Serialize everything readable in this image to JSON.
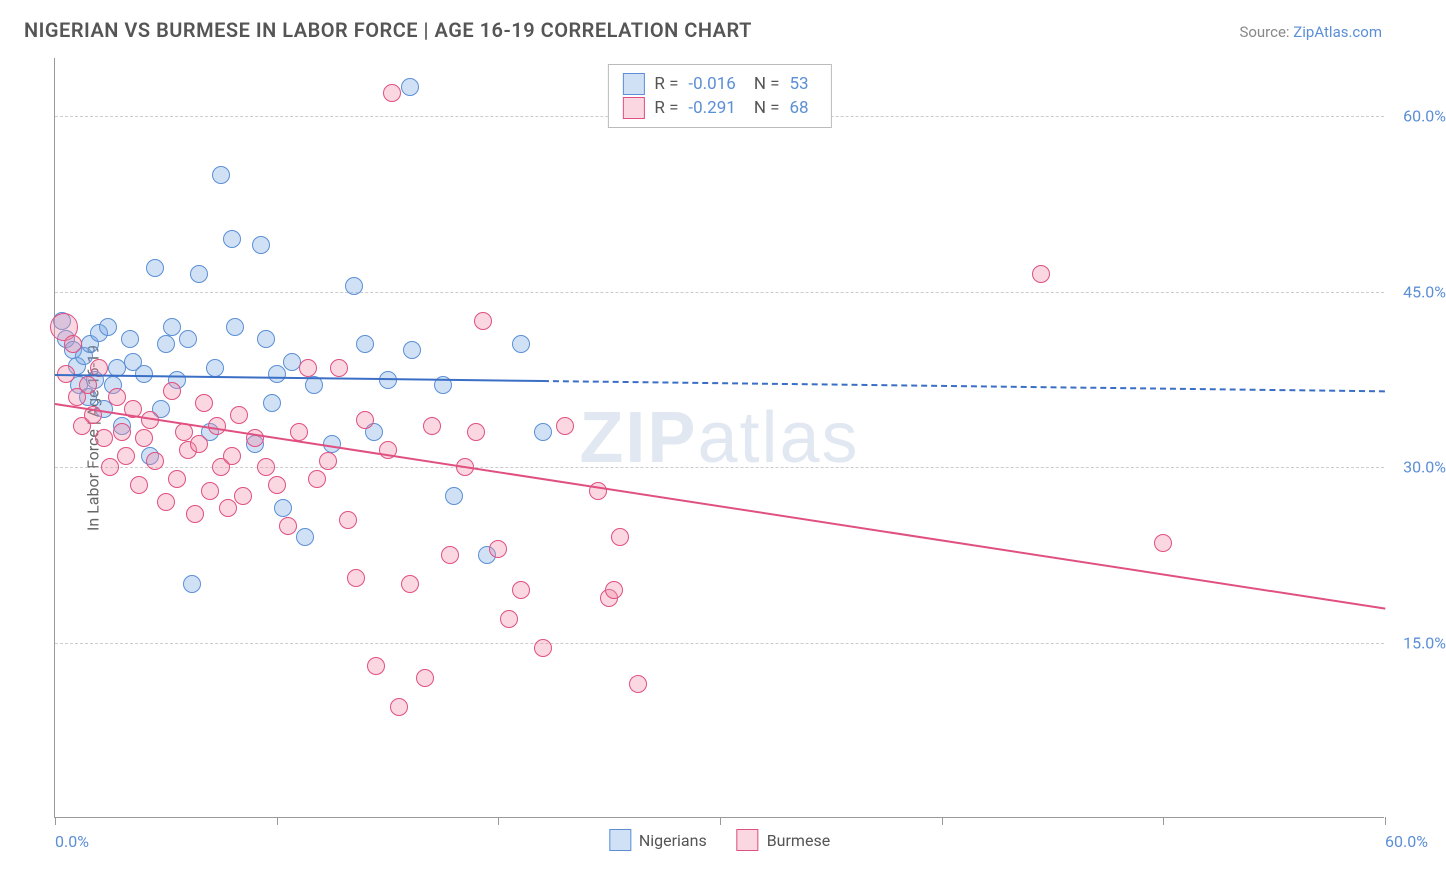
{
  "title": "NIGERIAN VS BURMESE IN LABOR FORCE | AGE 16-19 CORRELATION CHART",
  "source_prefix": "Source: ",
  "source_link": "ZipAtlas.com",
  "ylabel": "In Labor Force | Age 16-19",
  "watermark_bold": "ZIP",
  "watermark_rest": "atlas",
  "chart": {
    "type": "scatter",
    "xlim": [
      0,
      60
    ],
    "ylim": [
      0,
      65
    ],
    "x_ticks": [
      0,
      10,
      20,
      30,
      40,
      50,
      60
    ],
    "x_tick_labels": {
      "0": "0.0%",
      "60": "60.0%"
    },
    "y_gridlines": [
      15,
      30,
      45,
      60
    ],
    "y_tick_labels": {
      "15": "15.0%",
      "30": "30.0%",
      "45": "45.0%",
      "60": "60.0%"
    },
    "background_color": "#ffffff",
    "grid_color": "#cccccc",
    "axis_color": "#999999",
    "tick_label_color": "#5b8fd6",
    "marker_radius": 9,
    "marker_stroke_width": 1.5,
    "series": [
      {
        "name": "Nigerians",
        "fill": "rgba(120,170,230,0.35)",
        "stroke": "#5b8fd6",
        "R": "-0.016",
        "N": "53",
        "trend": {
          "x1": 0,
          "y1": 38.0,
          "x2": 60,
          "y2": 36.6,
          "solid_until_x": 22,
          "color": "#3b6fc6"
        },
        "points": [
          [
            0.3,
            42.5
          ],
          [
            0.5,
            41.0
          ],
          [
            0.8,
            40.0
          ],
          [
            1.0,
            38.7
          ],
          [
            1.1,
            37.0
          ],
          [
            1.3,
            39.5
          ],
          [
            1.5,
            36.0
          ],
          [
            1.6,
            40.5
          ],
          [
            1.8,
            37.5
          ],
          [
            2.0,
            41.5
          ],
          [
            2.2,
            35.0
          ],
          [
            2.4,
            42.0
          ],
          [
            2.6,
            37.0
          ],
          [
            2.8,
            38.5
          ],
          [
            3.0,
            33.5
          ],
          [
            3.4,
            41.0
          ],
          [
            3.5,
            39.0
          ],
          [
            4.0,
            38.0
          ],
          [
            4.3,
            31.0
          ],
          [
            4.5,
            47.0
          ],
          [
            4.8,
            35.0
          ],
          [
            5.0,
            40.5
          ],
          [
            5.3,
            42.0
          ],
          [
            5.5,
            37.5
          ],
          [
            6.0,
            41.0
          ],
          [
            6.2,
            20.0
          ],
          [
            6.5,
            46.5
          ],
          [
            7.0,
            33.0
          ],
          [
            7.2,
            38.5
          ],
          [
            7.5,
            55.0
          ],
          [
            8.0,
            49.5
          ],
          [
            8.1,
            42.0
          ],
          [
            9.0,
            32.0
          ],
          [
            9.3,
            49.0
          ],
          [
            9.5,
            41.0
          ],
          [
            9.8,
            35.5
          ],
          [
            10.0,
            38.0
          ],
          [
            10.3,
            26.5
          ],
          [
            10.7,
            39.0
          ],
          [
            11.3,
            24.0
          ],
          [
            11.7,
            37.0
          ],
          [
            12.5,
            32.0
          ],
          [
            13.5,
            45.5
          ],
          [
            14.0,
            40.5
          ],
          [
            14.4,
            33.0
          ],
          [
            15.0,
            37.5
          ],
          [
            16.0,
            62.5
          ],
          [
            16.1,
            40.0
          ],
          [
            17.5,
            37.0
          ],
          [
            18.0,
            27.5
          ],
          [
            19.5,
            22.5
          ],
          [
            21.0,
            40.5
          ],
          [
            22.0,
            33.0
          ]
        ]
      },
      {
        "name": "Burmese",
        "fill": "rgba(240,140,170,0.35)",
        "stroke": "#e05080",
        "R": "-0.291",
        "N": "68",
        "trend": {
          "x1": 0,
          "y1": 35.5,
          "x2": 60,
          "y2": 18.0,
          "solid_until_x": 60,
          "color": "#e05080"
        },
        "points": [
          [
            0.4,
            42.0,
            14
          ],
          [
            0.5,
            38.0
          ],
          [
            0.8,
            40.5
          ],
          [
            1.0,
            36.0
          ],
          [
            1.2,
            33.5
          ],
          [
            1.5,
            37.0
          ],
          [
            1.7,
            34.5
          ],
          [
            2.0,
            38.5
          ],
          [
            2.2,
            32.5
          ],
          [
            2.5,
            30.0
          ],
          [
            2.8,
            36.0
          ],
          [
            3.0,
            33.0
          ],
          [
            3.2,
            31.0
          ],
          [
            3.5,
            35.0
          ],
          [
            3.8,
            28.5
          ],
          [
            4.0,
            32.5
          ],
          [
            4.3,
            34.0
          ],
          [
            4.5,
            30.5
          ],
          [
            5.0,
            27.0
          ],
          [
            5.3,
            36.5
          ],
          [
            5.5,
            29.0
          ],
          [
            5.8,
            33.0
          ],
          [
            6.0,
            31.5
          ],
          [
            6.3,
            26.0
          ],
          [
            6.5,
            32.0
          ],
          [
            6.7,
            35.5
          ],
          [
            7.0,
            28.0
          ],
          [
            7.3,
            33.5
          ],
          [
            7.5,
            30.0
          ],
          [
            7.8,
            26.5
          ],
          [
            8.0,
            31.0
          ],
          [
            8.3,
            34.5
          ],
          [
            8.5,
            27.5
          ],
          [
            9.0,
            32.5
          ],
          [
            9.5,
            30.0
          ],
          [
            10.0,
            28.5
          ],
          [
            10.5,
            25.0
          ],
          [
            11.0,
            33.0
          ],
          [
            11.4,
            38.5
          ],
          [
            11.8,
            29.0
          ],
          [
            12.3,
            30.5
          ],
          [
            12.8,
            38.5
          ],
          [
            13.2,
            25.5
          ],
          [
            13.6,
            20.5
          ],
          [
            14.0,
            34.0
          ],
          [
            14.5,
            13.0
          ],
          [
            15.0,
            31.5
          ],
          [
            15.2,
            62.0
          ],
          [
            15.5,
            9.5
          ],
          [
            16.0,
            20.0
          ],
          [
            16.7,
            12.0
          ],
          [
            17.0,
            33.5
          ],
          [
            17.8,
            22.5
          ],
          [
            18.5,
            30.0
          ],
          [
            19.0,
            33.0
          ],
          [
            19.3,
            42.5
          ],
          [
            20.0,
            23.0
          ],
          [
            20.5,
            17.0
          ],
          [
            21.0,
            19.5
          ],
          [
            22.0,
            14.5
          ],
          [
            23.0,
            33.5
          ],
          [
            24.5,
            28.0
          ],
          [
            25.0,
            18.8
          ],
          [
            25.5,
            24.0
          ],
          [
            25.2,
            19.5
          ],
          [
            26.3,
            11.5
          ],
          [
            44.5,
            46.5
          ],
          [
            50.0,
            23.5
          ]
        ]
      }
    ]
  },
  "legend_top_label_R": "R =",
  "legend_top_label_N": "N =",
  "legend_bottom": [
    "Nigerians",
    "Burmese"
  ]
}
